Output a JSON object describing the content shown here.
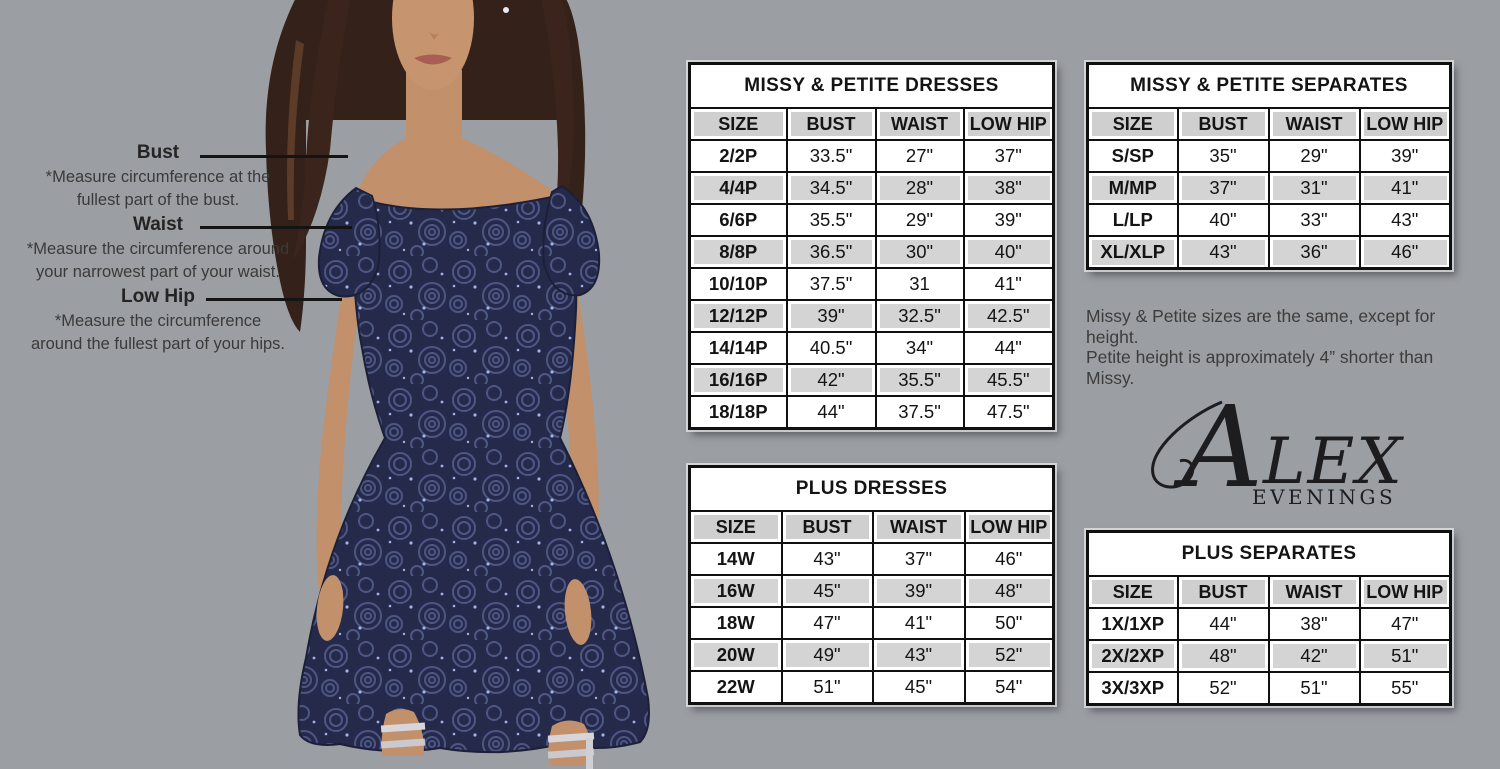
{
  "page": {
    "background": "#9b9ea3"
  },
  "colors": {
    "dress_navy": "#252a4a",
    "table_border": "#101010",
    "row_shade": "#d4d4d4",
    "text_dark": "#141414"
  },
  "brand": {
    "main": "ALEX",
    "sub": "EVENINGS"
  },
  "guide": {
    "items": [
      {
        "label": "Bust",
        "desc1": "*Measure circumference at the",
        "desc2": "fullest part of the bust."
      },
      {
        "label": "Waist",
        "desc1": "*Measure the circumference around",
        "desc2": "your narrowest part of your waist."
      },
      {
        "label": "Low Hip",
        "desc1": "*Measure the circumference",
        "desc2": "around the fullest part of your hips."
      }
    ]
  },
  "note": {
    "line1": "Missy & Petite sizes are the same, except for height.",
    "line2": "Petite height is approximately 4” shorter than Missy."
  },
  "tables": {
    "missy_dresses": {
      "title": "MISSY & PETITE DRESSES",
      "headers": [
        "SIZE",
        "BUST",
        "WAIST",
        "LOW HIP"
      ],
      "rows": [
        [
          "2/2P",
          "33.5\"",
          "27\"",
          "37\""
        ],
        [
          "4/4P",
          "34.5\"",
          "28\"",
          "38\""
        ],
        [
          "6/6P",
          "35.5\"",
          "29\"",
          "39\""
        ],
        [
          "8/8P",
          "36.5\"",
          "30\"",
          "40\""
        ],
        [
          "10/10P",
          "37.5\"",
          "31",
          "41\""
        ],
        [
          "12/12P",
          "39\"",
          "32.5\"",
          "42.5\""
        ],
        [
          "14/14P",
          "40.5\"",
          "34\"",
          "44\""
        ],
        [
          "16/16P",
          "42\"",
          "35.5\"",
          "45.5\""
        ],
        [
          "18/18P",
          "44\"",
          "37.5\"",
          "47.5\""
        ]
      ]
    },
    "missy_separates": {
      "title": "MISSY & PETITE SEPARATES",
      "headers": [
        "SIZE",
        "BUST",
        "WAIST",
        "LOW HIP"
      ],
      "rows": [
        [
          "S/SP",
          "35\"",
          "29\"",
          "39\""
        ],
        [
          "M/MP",
          "37\"",
          "31\"",
          "41\""
        ],
        [
          "L/LP",
          "40\"",
          "33\"",
          "43\""
        ],
        [
          "XL/XLP",
          "43\"",
          "36\"",
          "46\""
        ]
      ]
    },
    "plus_dresses": {
      "title": "PLUS DRESSES",
      "headers": [
        "SIZE",
        "BUST",
        "WAIST",
        "LOW HIP"
      ],
      "rows": [
        [
          "14W",
          "43\"",
          "37\"",
          "46\""
        ],
        [
          "16W",
          "45\"",
          "39\"",
          "48\""
        ],
        [
          "18W",
          "47\"",
          "41\"",
          "50\""
        ],
        [
          "20W",
          "49\"",
          "43\"",
          "52\""
        ],
        [
          "22W",
          "51\"",
          "45\"",
          "54\""
        ]
      ]
    },
    "plus_separates": {
      "title": "PLUS SEPARATES",
      "headers": [
        "SIZE",
        "BUST",
        "WAIST",
        "LOW HIP"
      ],
      "rows": [
        [
          "1X/1XP",
          "44\"",
          "38\"",
          "47\""
        ],
        [
          "2X/2XP",
          "48\"",
          "42\"",
          "51\""
        ],
        [
          "3X/3XP",
          "52\"",
          "51\"",
          "55\""
        ]
      ]
    }
  }
}
